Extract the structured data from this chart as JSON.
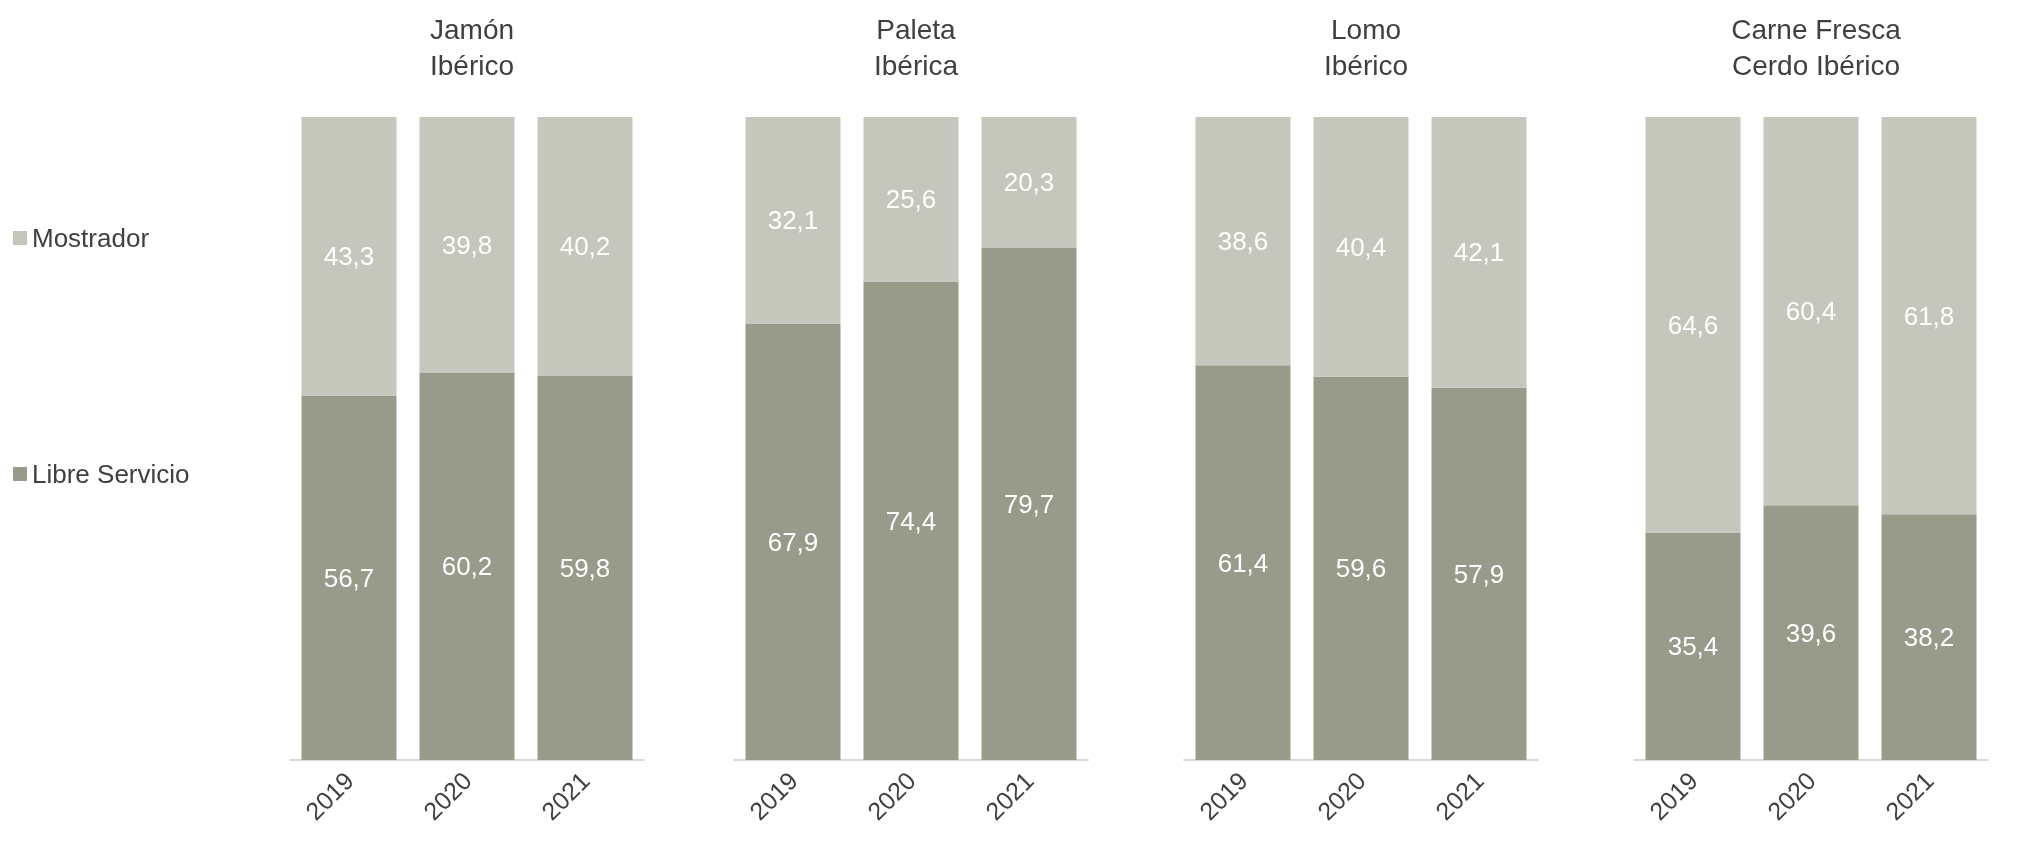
{
  "chart_data": [
    {
      "type": "bar",
      "title": "Jamón\nIbérico",
      "categories": [
        "2019",
        "2020",
        "2021"
      ],
      "stacked": true,
      "tick_labels": "x",
      "legend": "left",
      "series": [
        {
          "name": "Libre Servicio",
          "color": "#989a8a",
          "values": [
            56.7,
            60.2,
            59.8
          ],
          "value_labels": [
            "56,7",
            "60,2",
            "59,8"
          ]
        },
        {
          "name": "Mostrador",
          "color": "#c5c6bc",
          "values": [
            43.3,
            39.8,
            40.2
          ],
          "value_labels": [
            "43,3",
            "39,8",
            "40,2"
          ]
        }
      ]
    },
    {
      "type": "bar",
      "title": "Paleta\nIbérica",
      "categories": [
        "2019",
        "2020",
        "2021"
      ],
      "stacked": true,
      "tick_labels": "x",
      "series": [
        {
          "color": "#989a8a",
          "values": [
            67.9,
            74.4,
            79.7
          ],
          "value_labels": [
            "67,9",
            "74,4",
            "79,7"
          ]
        },
        {
          "color": "#c5c6bc",
          "values": [
            32.1,
            25.6,
            20.3
          ],
          "value_labels": [
            "32,1",
            "25,6",
            "20,3"
          ]
        }
      ]
    },
    {
      "type": "bar",
      "title": "Lomo\nIbérico",
      "categories": [
        "2019",
        "2020",
        "2021"
      ],
      "stacked": true,
      "tick_labels": "x",
      "series": [
        {
          "color": "#989a8a",
          "values": [
            61.4,
            59.6,
            57.9
          ],
          "value_labels": [
            "61,4",
            "59,6",
            "57,9"
          ]
        },
        {
          "color": "#c5c6bc",
          "values": [
            38.6,
            40.4,
            42.1
          ],
          "value_labels": [
            "38,6",
            "40,4",
            "42,1"
          ]
        }
      ]
    },
    {
      "type": "bar",
      "title": "Carne Fresca\nCerdo Ibérico",
      "categories": [
        "2019",
        "2020",
        "2021"
      ],
      "stacked": true,
      "tick_labels": "x",
      "series": [
        {
          "color": "#989a8a",
          "values": [
            35.4,
            39.6,
            38.2
          ],
          "value_labels": [
            "35,4",
            "39,6",
            "38,2"
          ]
        },
        {
          "color": "#c5c6bc",
          "values": [
            64.6,
            60.4,
            61.8
          ],
          "value_labels": [
            "64,6",
            "60,4",
            "61,8"
          ]
        }
      ]
    }
  ]
}
